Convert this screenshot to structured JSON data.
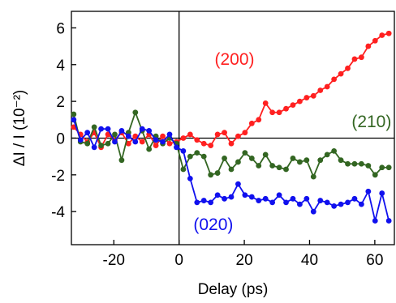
{
  "chart_data": {
    "type": "line",
    "xlabel": "Delay (ps)",
    "ylabel": "ΔI / I (10⁻²)",
    "xlim": [
      -33,
      66
    ],
    "ylim": [
      -5.8,
      6.9
    ],
    "xticks": [
      -20,
      0,
      20,
      40,
      60
    ],
    "yticks": [
      -4,
      -2,
      0,
      2,
      4,
      6
    ],
    "reference_lines": {
      "x": 0,
      "y": 0
    },
    "series": [
      {
        "name": "(200)",
        "color": "#ff2020",
        "label_pos": [
          17,
          4.3
        ],
        "x": [
          -32.3,
          -30.2,
          -28.1,
          -26.0,
          -23.9,
          -21.8,
          -19.7,
          -17.6,
          -15.5,
          -13.4,
          -11.3,
          -9.2,
          -7.1,
          -5.0,
          -2.9,
          -0.8,
          1.3,
          3.4,
          5.5,
          7.6,
          9.7,
          11.8,
          13.9,
          16.0,
          18.1,
          20.2,
          22.3,
          24.4,
          26.5,
          28.6,
          30.7,
          32.8,
          34.9,
          37.0,
          39.1,
          41.2,
          43.3,
          45.4,
          47.5,
          49.6,
          51.7,
          53.8,
          55.9,
          58.0,
          60.1,
          62.2,
          64.3
        ],
        "y": [
          0.6,
          0.2,
          -0.2,
          0.3,
          -0.5,
          0.2,
          -0.1,
          0.3,
          -0.3,
          0.1,
          -0.2,
          0.2,
          -0.4,
          0.1,
          -0.3,
          -0.2,
          0.0,
          0.2,
          -0.1,
          -0.3,
          -0.4,
          0.2,
          0.3,
          -0.3,
          0.1,
          0.3,
          0.8,
          1.0,
          1.9,
          1.4,
          1.4,
          1.6,
          1.8,
          2.0,
          2.2,
          2.3,
          2.6,
          2.8,
          3.2,
          3.5,
          3.8,
          4.3,
          4.4,
          5.0,
          5.3,
          5.6,
          5.7
        ]
      },
      {
        "name": "(210)",
        "color": "#336622",
        "label_pos": [
          59,
          0.9
        ],
        "x": [
          -32.3,
          -30.2,
          -28.1,
          -26.0,
          -23.9,
          -21.8,
          -19.7,
          -17.6,
          -15.5,
          -13.4,
          -11.3,
          -9.2,
          -7.1,
          -5.0,
          -2.9,
          -0.8,
          1.3,
          3.4,
          5.5,
          7.6,
          9.7,
          11.8,
          13.9,
          16.0,
          18.1,
          20.2,
          22.3,
          24.4,
          26.5,
          28.6,
          30.7,
          32.8,
          34.9,
          37.0,
          39.1,
          41.2,
          43.3,
          45.4,
          47.5,
          49.6,
          51.7,
          53.8,
          55.9,
          58.0,
          60.1,
          62.2,
          64.3
        ],
        "y": [
          1.3,
          -0.2,
          -0.3,
          0.6,
          -0.4,
          -0.3,
          0.2,
          -1.2,
          0.3,
          1.4,
          0.4,
          -0.6,
          0.1,
          -0.3,
          0.0,
          -0.3,
          -1.7,
          -1.0,
          -0.8,
          -1.0,
          -2.0,
          -1.9,
          -1.1,
          -1.7,
          -1.3,
          -0.8,
          -1.1,
          -1.5,
          -0.9,
          -1.5,
          -1.6,
          -1.7,
          -1.1,
          -1.3,
          -1.2,
          -2.1,
          -1.2,
          -0.9,
          -0.7,
          -1.2,
          -1.4,
          -1.4,
          -1.4,
          -1.5,
          -2.0,
          -1.6,
          -1.6
        ]
      },
      {
        "name": "(020)",
        "color": "#1010ee",
        "label_pos": [
          10.5,
          -4.7
        ],
        "x": [
          -32.3,
          -30.2,
          -28.1,
          -26.0,
          -23.9,
          -21.8,
          -19.7,
          -17.6,
          -15.5,
          -13.4,
          -11.3,
          -9.2,
          -7.1,
          -5.0,
          -2.9,
          -0.8,
          1.3,
          3.4,
          5.5,
          7.6,
          9.7,
          11.8,
          13.9,
          16.0,
          18.1,
          20.2,
          22.3,
          24.4,
          26.5,
          28.6,
          30.7,
          32.8,
          34.9,
          37.0,
          39.1,
          41.2,
          43.3,
          45.4,
          47.5,
          49.6,
          51.7,
          53.8,
          55.9,
          58.0,
          60.1,
          62.2,
          64.3
        ],
        "y": [
          1.0,
          -0.1,
          0.3,
          -0.5,
          0.5,
          0.5,
          -0.2,
          0.4,
          0.1,
          -0.2,
          0.5,
          0.4,
          -0.1,
          -0.2,
          0.2,
          -0.5,
          -0.7,
          -2.2,
          -3.5,
          -3.4,
          -3.5,
          -3.1,
          -3.3,
          -3.2,
          -2.5,
          -3.1,
          -3.2,
          -3.4,
          -3.3,
          -3.5,
          -3.1,
          -3.5,
          -3.3,
          -3.6,
          -3.3,
          -4.0,
          -3.4,
          -3.5,
          -3.7,
          -3.6,
          -3.5,
          -3.3,
          -3.6,
          -2.9,
          -4.5,
          -3.0,
          -4.5
        ]
      }
    ]
  }
}
